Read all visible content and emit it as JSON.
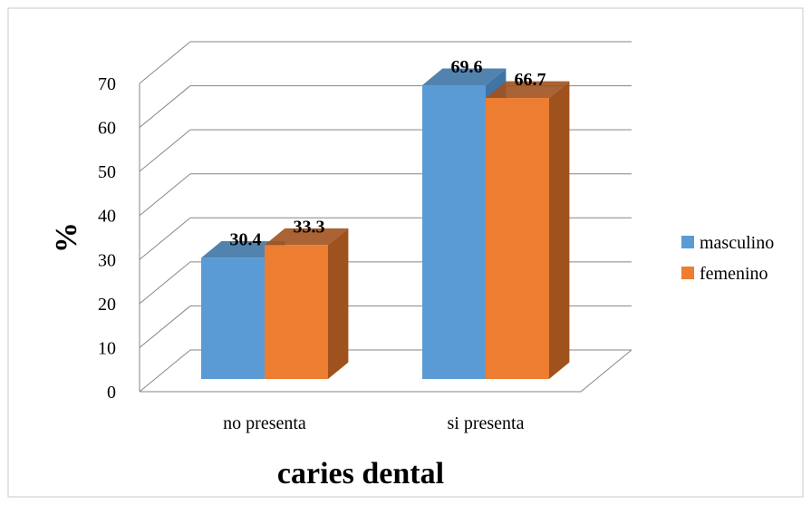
{
  "chart_data": {
    "type": "bar",
    "title": "",
    "xlabel": "caries dental",
    "ylabel": "%",
    "categories": [
      "no presenta",
      "si presenta"
    ],
    "series": [
      {
        "name": "masculino",
        "values": [
          30.4,
          69.6
        ]
      },
      {
        "name": "femenino",
        "values": [
          33.3,
          66.7
        ]
      }
    ],
    "y_ticks": [
      "0",
      "10",
      "20",
      "30",
      "40",
      "50",
      "60",
      "70"
    ],
    "ylim": [
      0,
      70
    ],
    "grid": true,
    "legend": "right",
    "style": "3d-clustered-column",
    "colors": {
      "masculino": "#5b9bd5",
      "masculino_side": "#3f75a6",
      "femenino": "#ed7d31",
      "femenino_side": "#a0521e",
      "grid": "#868686",
      "border": "#c8c8c8"
    }
  }
}
